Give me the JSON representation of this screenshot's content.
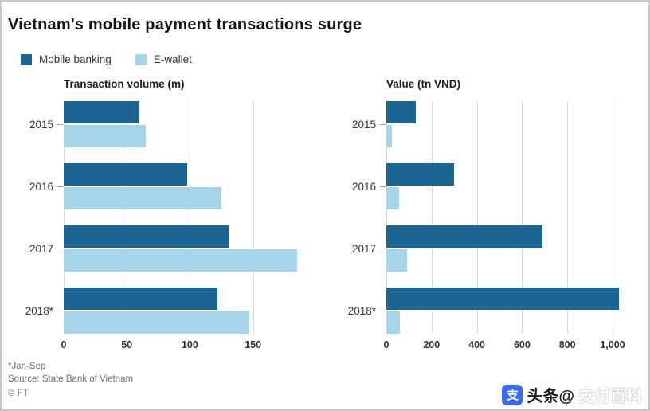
{
  "title": "Vietnam's mobile payment transactions surge",
  "legend": [
    {
      "label": "Mobile banking",
      "color": "#1a6593"
    },
    {
      "label": "E-wallet",
      "color": "#a6d5ea"
    }
  ],
  "colors": {
    "mobile_banking": "#1a6593",
    "e_wallet": "#a6d5ea",
    "gridline": "#d9d9d9",
    "frame_border": "#c9c9c9",
    "watermark_icon": "#3b6cf0"
  },
  "chart_data": [
    {
      "type": "bar",
      "orientation": "horizontal",
      "title": "Transaction volume (m)",
      "categories": [
        "2015",
        "2016",
        "2017",
        "2018*"
      ],
      "series": [
        {
          "name": "Mobile banking",
          "color": "#1a6593",
          "values": [
            60,
            98,
            131,
            122
          ]
        },
        {
          "name": "E-wallet",
          "color": "#a6d5ea",
          "values": [
            65,
            125,
            185,
            147
          ]
        }
      ],
      "xlim": [
        0,
        190
      ],
      "ticks": [
        0,
        50,
        100,
        150
      ],
      "tick_labels": [
        "0",
        "50",
        "100",
        "150"
      ],
      "grid": true,
      "legend_position": "top-left"
    },
    {
      "type": "bar",
      "orientation": "horizontal",
      "title": "Value (tn VND)",
      "categories": [
        "2015",
        "2016",
        "2017",
        "2018*"
      ],
      "series": [
        {
          "name": "Mobile banking",
          "color": "#1a6593",
          "values": [
            130,
            300,
            690,
            1030
          ]
        },
        {
          "name": "E-wallet",
          "color": "#a6d5ea",
          "values": [
            25,
            55,
            90,
            60
          ]
        }
      ],
      "xlim": [
        0,
        1060
      ],
      "ticks": [
        0,
        200,
        400,
        600,
        800,
        1000
      ],
      "tick_labels": [
        "0",
        "200",
        "400",
        "600",
        "800",
        "1,000"
      ],
      "grid": true,
      "legend_position": "top-left"
    }
  ],
  "footer": {
    "note": "*Jan-Sep",
    "source": "Source: State Bank of Vietnam",
    "credit": "© FT"
  },
  "watermark": {
    "icon_text": "支",
    "text_dark": "头条@",
    "text_light": "支付百科"
  }
}
